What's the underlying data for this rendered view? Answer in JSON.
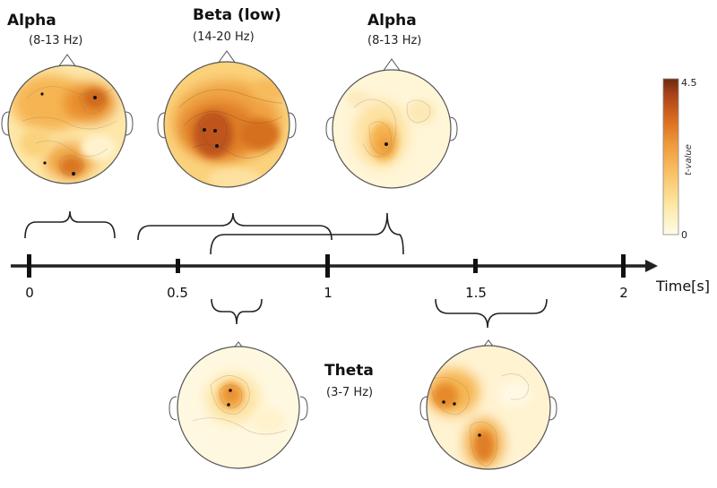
{
  "timeline": {
    "axis_label": "Time[s]",
    "ticks": [
      "0",
      "0.5",
      "1",
      "1.5",
      "2"
    ]
  },
  "bands": {
    "alpha_1": {
      "title": "Alpha",
      "range": "(8-13 Hz)"
    },
    "beta_low": {
      "title": "Beta (low)",
      "range": "(14-20 Hz)"
    },
    "alpha_2": {
      "title": "Alpha",
      "range": "(8-13 Hz)"
    },
    "theta": {
      "title": "Theta",
      "range": "(3-7 Hz)"
    }
  },
  "colorbar": {
    "title": "t-value",
    "max_label": "4.5",
    "min_label": "0",
    "colors": [
      "#fffbe8",
      "#fde9a8",
      "#f9c56a",
      "#ef9a3a",
      "#d8681f",
      "#a8431a",
      "#6e2a12"
    ]
  },
  "topomaps": [
    {
      "name": "alpha-1"
    },
    {
      "name": "beta-low"
    },
    {
      "name": "alpha-2"
    },
    {
      "name": "theta-1"
    },
    {
      "name": "theta-2"
    }
  ]
}
